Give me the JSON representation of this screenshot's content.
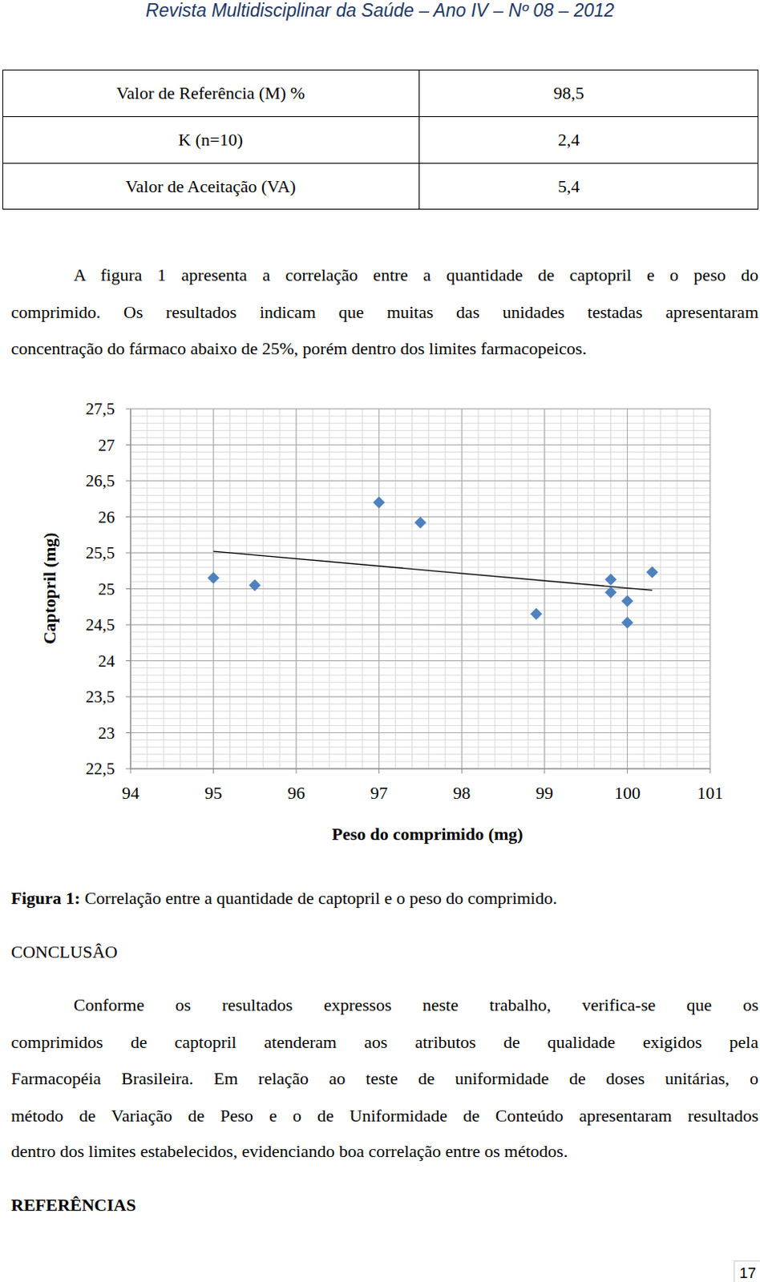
{
  "header": {
    "title": "Revista Multidisciplinar da Saúde – Ano IV – Nº 08 – 2012"
  },
  "table": {
    "rows": [
      [
        "Valor de Referência (M) %",
        "98,5"
      ],
      [
        "K (n=10)",
        "2,4"
      ],
      [
        "Valor de Aceitação (VA)",
        "5,4"
      ]
    ]
  },
  "paragraph": {
    "lines": [
      "A figura 1 apresenta a correlação entre a quantidade de captopril e o peso do",
      "comprimido. Os resultados indicam que muitas das unidades testadas apresentaram",
      "concentração do fármaco abaixo de 25%, porém dentro dos limites farmacopeicos."
    ]
  },
  "chart_data": {
    "type": "scatter",
    "x_label": "Peso do comprimido (mg)",
    "y_label": "Captopril (mg)",
    "x": [
      95,
      95.5,
      97,
      97.5,
      98.9,
      99.8,
      99.8,
      100,
      100,
      100.3
    ],
    "values": [
      25.15,
      25.05,
      26.2,
      25.92,
      24.65,
      25.13,
      24.95,
      24.83,
      24.53,
      25.23
    ],
    "trendline": {
      "x": [
        95,
        100.3
      ],
      "values": [
        25.52,
        24.98
      ]
    },
    "color": "#4f81bd",
    "marker": "diamond",
    "grid": true,
    "xlim": [
      94,
      101
    ],
    "xticks": [
      94,
      95,
      96,
      97,
      98,
      99,
      100,
      101
    ],
    "ylim": [
      22.5,
      27.5
    ],
    "yticks": [
      {
        "value": 22.5,
        "label": "22,5"
      },
      23,
      {
        "value": 23.5,
        "label": "23,5"
      },
      24,
      {
        "value": 24.5,
        "label": "24,5"
      },
      25,
      {
        "value": 25.5,
        "label": "25,5"
      },
      26,
      {
        "value": 26.5,
        "label": "26,5"
      },
      27,
      {
        "value": 27.5,
        "label": "27,5"
      }
    ]
  },
  "caption": {
    "label": "Figura 1:",
    "text": " Correlação entre a quantidade de captopril e o peso do comprimido."
  },
  "conclusion": {
    "heading": "CONCLUSÂO",
    "lines": [
      "Conforme os resultados expressos neste trabalho, verifica-se que os",
      "comprimidos de captopril atenderam aos atributos de qualidade exigidos pela",
      "Farmacopéia Brasileira. Em relação ao teste de uniformidade de doses unitárias, o",
      "método de Variação de Peso e o de Uniformidade de Conteúdo apresentaram resultados",
      "dentro dos limites estabelecidos, evidenciando boa correlação entre os métodos."
    ]
  },
  "references": {
    "heading": "REFERÊNCIAS"
  },
  "page_number": "17"
}
